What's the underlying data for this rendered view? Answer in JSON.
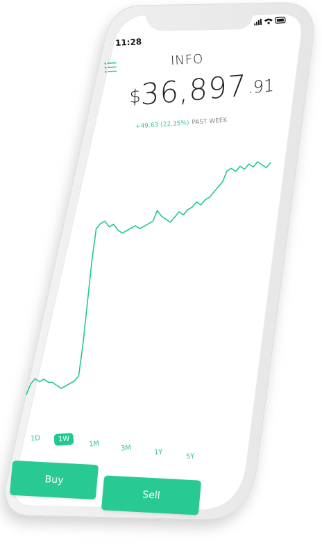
{
  "status_bar": {
    "time": "11:28"
  },
  "header": {
    "menu_icon": "menu-icon",
    "title": "INFO"
  },
  "balance": {
    "currency": "$",
    "whole": "36,897",
    "cents": ".91"
  },
  "change": {
    "value": "+49.63 (22.35%)",
    "period": "PAST WEEK"
  },
  "chart_data": {
    "type": "line",
    "title": "",
    "xlabel": "",
    "ylabel": "",
    "series": [
      {
        "values": [
          10,
          14,
          16,
          15,
          16,
          15,
          15,
          14,
          13,
          14,
          15,
          16,
          18,
          30,
          45,
          60,
          72,
          74,
          75,
          73,
          74,
          72,
          71,
          72,
          73,
          74,
          73,
          74,
          75,
          76,
          80,
          78,
          77,
          76,
          78,
          80,
          79,
          81,
          82,
          84,
          83,
          85,
          86,
          88,
          90,
          92,
          96,
          97,
          96,
          98,
          97,
          99,
          98,
          100,
          99,
          98,
          100
        ]
      }
    ],
    "color": "#20c98f"
  },
  "ranges": {
    "items": [
      "1D",
      "1W",
      "1M",
      "3M",
      "1Y",
      "5Y"
    ],
    "active": "1W"
  },
  "actions": {
    "buy_label": "Buy",
    "sell_label": "Sell"
  },
  "colors": {
    "accent": "#20c98f",
    "button": "#28c992",
    "text": "#222222"
  }
}
